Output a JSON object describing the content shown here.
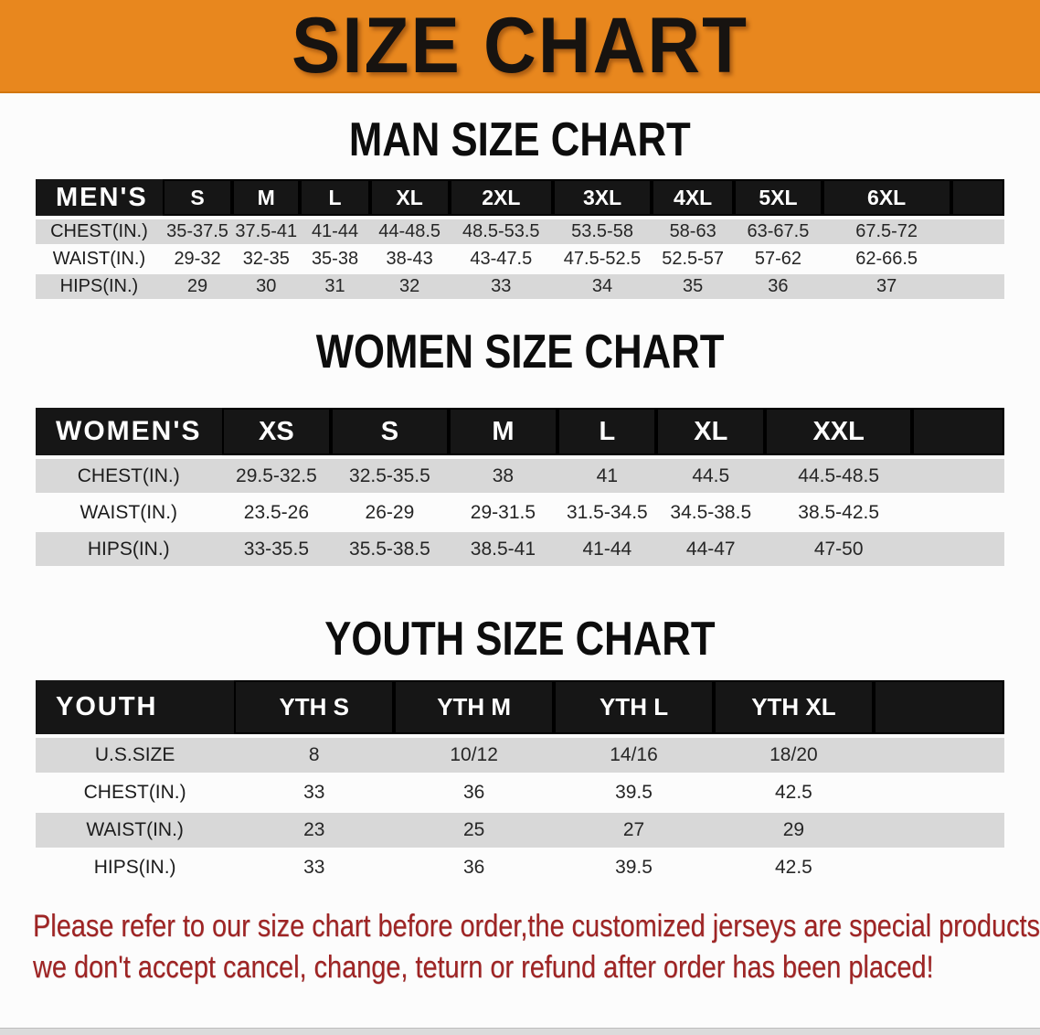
{
  "banner": {
    "title": "SIZE CHART",
    "background_color": "#e8871e",
    "text_color": "#171310"
  },
  "chart_data": [
    {
      "type": "table",
      "id": "men",
      "title": "MAN SIZE CHART",
      "corner_label": "MEN'S",
      "columns": [
        "S",
        "M",
        "L",
        "XL",
        "2XL",
        "3XL",
        "4XL",
        "5XL",
        "6XL"
      ],
      "rows": [
        {
          "label": "CHEST(IN.)",
          "values": [
            "35-37.5",
            "37.5-41",
            "41-44",
            "44-48.5",
            "48.5-53.5",
            "53.5-58",
            "58-63",
            "63-67.5",
            "67.5-72"
          ]
        },
        {
          "label": "WAIST(IN.)",
          "values": [
            "29-32",
            "32-35",
            "35-38",
            "38-43",
            "43-47.5",
            "47.5-52.5",
            "52.5-57",
            "57-62",
            "62-66.5"
          ]
        },
        {
          "label": "HIPS(IN.)",
          "values": [
            "29",
            "30",
            "31",
            "32",
            "33",
            "34",
            "35",
            "36",
            "37"
          ]
        }
      ]
    },
    {
      "type": "table",
      "id": "women",
      "title": "WOMEN SIZE CHART",
      "corner_label": "WOMEN'S",
      "columns": [
        "XS",
        "S",
        "M",
        "L",
        "XL",
        "XXL"
      ],
      "rows": [
        {
          "label": "CHEST(IN.)",
          "values": [
            "29.5-32.5",
            "32.5-35.5",
            "38",
            "41",
            "44.5",
            "44.5-48.5"
          ]
        },
        {
          "label": "WAIST(IN.)",
          "values": [
            "23.5-26",
            "26-29",
            "29-31.5",
            "31.5-34.5",
            "34.5-38.5",
            "38.5-42.5"
          ]
        },
        {
          "label": "HIPS(IN.)",
          "values": [
            "33-35.5",
            "35.5-38.5",
            "38.5-41",
            "41-44",
            "44-47",
            "47-50"
          ]
        }
      ]
    },
    {
      "type": "table",
      "id": "youth",
      "title": "YOUTH SIZE CHART",
      "corner_label": "YOUTH",
      "columns": [
        "YTH S",
        "YTH M",
        "YTH L",
        "YTH XL"
      ],
      "rows": [
        {
          "label": "U.S.SIZE",
          "values": [
            "8",
            "10/12",
            "14/16",
            "18/20"
          ]
        },
        {
          "label": "CHEST(IN.)",
          "values": [
            "33",
            "36",
            "39.5",
            "42.5"
          ]
        },
        {
          "label": "WAIST(IN.)",
          "values": [
            "23",
            "25",
            "27",
            "29"
          ]
        },
        {
          "label": "HIPS(IN.)",
          "values": [
            "33",
            "36",
            "39.5",
            "42.5"
          ]
        }
      ]
    }
  ],
  "table_style": {
    "header_bg": "#161616",
    "header_text": "#ffffff",
    "shaded_row_bg": "#d8d8d8"
  },
  "disclaimer": {
    "color": "#9e2424",
    "lines": [
      "Please refer to our size chart before order,the customized jerseys are special products,",
      "we don't accept cancel, change, teturn or refund after order has been placed!"
    ]
  }
}
